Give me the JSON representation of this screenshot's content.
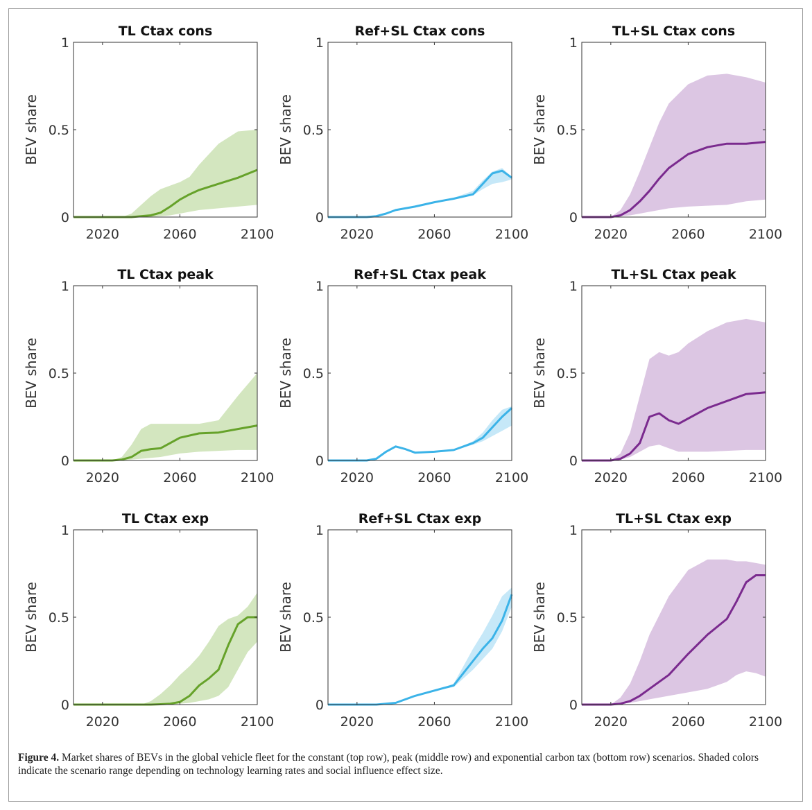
{
  "figure": {
    "caption_label": "Figure 4.",
    "caption_text": "Market shares of BEVs in the global vehicle fleet for the constant (top row), peak (middle row) and exponential carbon tax (bottom row) scenarios. Shaded colors indicate the scenario range depending on technology learning rates and social influence effect size."
  },
  "colors": {
    "TL": {
      "line": "#66a22a",
      "band": "#d3e6bf"
    },
    "RefSL": {
      "line": "#3bb3e8",
      "band": "#c6e8f8"
    },
    "TLSL": {
      "line": "#7a2a8e",
      "band": "#dcc6e3"
    }
  },
  "chart_data": [
    {
      "type": "area",
      "title": "TL Ctax cons",
      "ylabel": "BEV share",
      "xlim": [
        2005,
        2100
      ],
      "ylim": [
        0,
        1
      ],
      "xticks": [
        2020,
        2060,
        2100
      ],
      "yticks": [
        0,
        0.5,
        1
      ],
      "color_key": "TL",
      "x": [
        2005,
        2030,
        2035,
        2040,
        2045,
        2050,
        2055,
        2060,
        2065,
        2070,
        2080,
        2090,
        2100
      ],
      "value": [
        0,
        0,
        0,
        0.005,
        0.01,
        0.025,
        0.06,
        0.1,
        0.13,
        0.155,
        0.19,
        0.225,
        0.27
      ],
      "lower": [
        0,
        0,
        0,
        0,
        0,
        0.005,
        0.01,
        0.02,
        0.03,
        0.04,
        0.05,
        0.06,
        0.07
      ],
      "upper": [
        0,
        0,
        0.02,
        0.07,
        0.12,
        0.16,
        0.18,
        0.2,
        0.23,
        0.3,
        0.42,
        0.49,
        0.5
      ]
    },
    {
      "type": "area",
      "title": "Ref+SL Ctax cons",
      "ylabel": "BEV share",
      "xlim": [
        2005,
        2100
      ],
      "ylim": [
        0,
        1
      ],
      "xticks": [
        2020,
        2060,
        2100
      ],
      "yticks": [
        0,
        0.5,
        1
      ],
      "color_key": "RefSL",
      "x": [
        2005,
        2025,
        2030,
        2035,
        2040,
        2050,
        2060,
        2070,
        2080,
        2085,
        2090,
        2095,
        2100
      ],
      "value": [
        0,
        0,
        0.005,
        0.02,
        0.04,
        0.06,
        0.085,
        0.105,
        0.13,
        0.19,
        0.25,
        0.265,
        0.225
      ],
      "lower": [
        0,
        0,
        0.005,
        0.02,
        0.04,
        0.06,
        0.083,
        0.1,
        0.125,
        0.16,
        0.19,
        0.2,
        0.215
      ],
      "upper": [
        0,
        0,
        0.005,
        0.02,
        0.04,
        0.06,
        0.088,
        0.11,
        0.15,
        0.21,
        0.26,
        0.28,
        0.23
      ]
    },
    {
      "type": "area",
      "title": "TL+SL Ctax cons",
      "ylabel": "BEV share",
      "xlim": [
        2005,
        2100
      ],
      "ylim": [
        0,
        1
      ],
      "xticks": [
        2020,
        2060,
        2100
      ],
      "yticks": [
        0,
        0.5,
        1
      ],
      "color_key": "TLSL",
      "x": [
        2005,
        2020,
        2025,
        2030,
        2035,
        2040,
        2045,
        2050,
        2060,
        2070,
        2080,
        2090,
        2100
      ],
      "value": [
        0,
        0,
        0.01,
        0.04,
        0.09,
        0.15,
        0.22,
        0.28,
        0.36,
        0.4,
        0.42,
        0.42,
        0.43
      ],
      "lower": [
        0,
        0,
        0.005,
        0.01,
        0.02,
        0.03,
        0.04,
        0.05,
        0.06,
        0.065,
        0.07,
        0.09,
        0.1
      ],
      "upper": [
        0,
        0,
        0.04,
        0.13,
        0.26,
        0.4,
        0.54,
        0.65,
        0.76,
        0.81,
        0.82,
        0.8,
        0.77
      ]
    },
    {
      "type": "area",
      "title": "TL Ctax peak",
      "ylabel": "BEV share",
      "xlim": [
        2005,
        2100
      ],
      "ylim": [
        0,
        1
      ],
      "xticks": [
        2020,
        2060,
        2100
      ],
      "yticks": [
        0,
        0.5,
        1
      ],
      "color_key": "TL",
      "x": [
        2005,
        2025,
        2030,
        2035,
        2040,
        2045,
        2050,
        2055,
        2060,
        2070,
        2080,
        2090,
        2100
      ],
      "value": [
        0,
        0,
        0.005,
        0.02,
        0.055,
        0.065,
        0.07,
        0.1,
        0.13,
        0.155,
        0.16,
        0.18,
        0.2
      ],
      "lower": [
        0,
        0,
        0,
        0.005,
        0.01,
        0.015,
        0.02,
        0.03,
        0.04,
        0.05,
        0.055,
        0.06,
        0.06
      ],
      "upper": [
        0,
        0,
        0.02,
        0.09,
        0.18,
        0.21,
        0.21,
        0.21,
        0.21,
        0.21,
        0.23,
        0.37,
        0.5
      ]
    },
    {
      "type": "area",
      "title": "Ref+SL Ctax peak",
      "ylabel": "BEV share",
      "xlim": [
        2005,
        2100
      ],
      "ylim": [
        0,
        1
      ],
      "xticks": [
        2020,
        2060,
        2100
      ],
      "yticks": [
        0,
        0.5,
        1
      ],
      "color_key": "RefSL",
      "x": [
        2005,
        2025,
        2030,
        2035,
        2040,
        2045,
        2050,
        2060,
        2070,
        2080,
        2085,
        2090,
        2095,
        2100
      ],
      "value": [
        0,
        0,
        0.01,
        0.05,
        0.08,
        0.065,
        0.045,
        0.05,
        0.06,
        0.1,
        0.13,
        0.19,
        0.25,
        0.3
      ],
      "lower": [
        0,
        0,
        0.01,
        0.05,
        0.08,
        0.065,
        0.045,
        0.05,
        0.058,
        0.09,
        0.11,
        0.14,
        0.17,
        0.2
      ],
      "upper": [
        0,
        0,
        0.01,
        0.05,
        0.08,
        0.065,
        0.045,
        0.05,
        0.062,
        0.11,
        0.16,
        0.23,
        0.29,
        0.31
      ]
    },
    {
      "type": "area",
      "title": "TL+SL Ctax peak",
      "ylabel": "BEV share",
      "xlim": [
        2005,
        2100
      ],
      "ylim": [
        0,
        1
      ],
      "xticks": [
        2020,
        2060,
        2100
      ],
      "yticks": [
        0,
        0.5,
        1
      ],
      "color_key": "TLSL",
      "x": [
        2005,
        2020,
        2025,
        2030,
        2035,
        2040,
        2045,
        2050,
        2055,
        2060,
        2070,
        2080,
        2090,
        2100
      ],
      "value": [
        0,
        0,
        0.01,
        0.04,
        0.1,
        0.25,
        0.27,
        0.23,
        0.21,
        0.24,
        0.3,
        0.34,
        0.38,
        0.39
      ],
      "lower": [
        0,
        0,
        0.005,
        0.02,
        0.05,
        0.08,
        0.09,
        0.07,
        0.05,
        0.05,
        0.05,
        0.055,
        0.06,
        0.06
      ],
      "upper": [
        0,
        0,
        0.04,
        0.16,
        0.37,
        0.58,
        0.62,
        0.6,
        0.62,
        0.67,
        0.74,
        0.79,
        0.81,
        0.79
      ]
    },
    {
      "type": "area",
      "title": "TL Ctax exp",
      "ylabel": "BEV share",
      "xlim": [
        2005,
        2100
      ],
      "ylim": [
        0,
        1
      ],
      "xticks": [
        2020,
        2060,
        2100
      ],
      "yticks": [
        0,
        0.5,
        1
      ],
      "color_key": "TL",
      "x": [
        2005,
        2040,
        2045,
        2050,
        2055,
        2060,
        2065,
        2070,
        2075,
        2080,
        2085,
        2090,
        2095,
        2100
      ],
      "value": [
        0,
        0,
        0,
        0.002,
        0.005,
        0.015,
        0.05,
        0.11,
        0.15,
        0.2,
        0.34,
        0.46,
        0.5,
        0.5
      ],
      "lower": [
        0,
        0,
        0,
        0,
        0,
        0.005,
        0.01,
        0.02,
        0.03,
        0.05,
        0.1,
        0.2,
        0.3,
        0.36
      ],
      "upper": [
        0,
        0,
        0.02,
        0.06,
        0.11,
        0.17,
        0.22,
        0.28,
        0.36,
        0.45,
        0.49,
        0.51,
        0.56,
        0.64
      ]
    },
    {
      "type": "area",
      "title": "Ref+SL Ctax exp",
      "ylabel": "BEV share",
      "xlim": [
        2005,
        2100
      ],
      "ylim": [
        0,
        1
      ],
      "xticks": [
        2020,
        2060,
        2100
      ],
      "yticks": [
        0,
        0.5,
        1
      ],
      "color_key": "RefSL",
      "x": [
        2005,
        2030,
        2040,
        2050,
        2060,
        2070,
        2075,
        2080,
        2085,
        2090,
        2095,
        2100
      ],
      "value": [
        0,
        0,
        0.01,
        0.05,
        0.08,
        0.11,
        0.18,
        0.25,
        0.32,
        0.38,
        0.48,
        0.63
      ],
      "lower": [
        0,
        0,
        0.01,
        0.05,
        0.08,
        0.1,
        0.15,
        0.2,
        0.26,
        0.32,
        0.42,
        0.56
      ],
      "upper": [
        0,
        0,
        0.01,
        0.05,
        0.08,
        0.12,
        0.22,
        0.32,
        0.41,
        0.51,
        0.62,
        0.67
      ]
    },
    {
      "type": "area",
      "title": "TL+SL Ctax exp",
      "ylabel": "BEV share",
      "xlim": [
        2005,
        2100
      ],
      "ylim": [
        0,
        1
      ],
      "xticks": [
        2020,
        2060,
        2100
      ],
      "yticks": [
        0,
        0.5,
        1
      ],
      "color_key": "TLSL",
      "x": [
        2005,
        2020,
        2025,
        2030,
        2035,
        2040,
        2050,
        2060,
        2070,
        2080,
        2085,
        2090,
        2095,
        2100
      ],
      "value": [
        0,
        0,
        0.005,
        0.02,
        0.05,
        0.09,
        0.17,
        0.29,
        0.4,
        0.49,
        0.59,
        0.7,
        0.74,
        0.74
      ],
      "lower": [
        0,
        0,
        0.005,
        0.01,
        0.02,
        0.03,
        0.05,
        0.07,
        0.09,
        0.13,
        0.17,
        0.19,
        0.18,
        0.16
      ],
      "upper": [
        0,
        0,
        0.04,
        0.12,
        0.25,
        0.4,
        0.62,
        0.77,
        0.83,
        0.83,
        0.82,
        0.82,
        0.81,
        0.8
      ]
    }
  ]
}
